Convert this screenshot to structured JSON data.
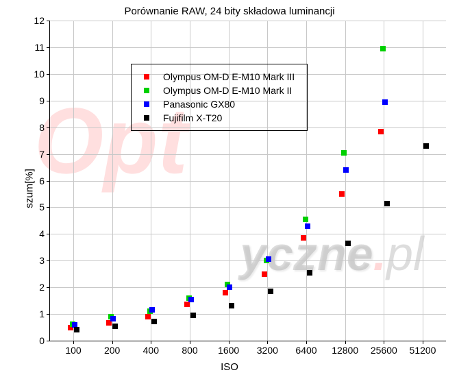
{
  "chart": {
    "type": "scatter",
    "title": "Porównanie RAW, 24 bity składowa luminancji",
    "xlabel": "ISO",
    "ylabel": "szum[%]",
    "background_color": "#ffffff",
    "grid_color": "#c8c8c8",
    "title_fontsize": 15,
    "label_fontsize": 15,
    "tick_fontsize": 14,
    "marker_size": 8,
    "ylim": [
      0,
      12
    ],
    "ytick_step": 1,
    "yticks": [
      0,
      1,
      2,
      3,
      4,
      5,
      6,
      7,
      8,
      9,
      10,
      11,
      12
    ],
    "x_categories": [
      "100",
      "200",
      "400",
      "800",
      "1600",
      "3200",
      "6400",
      "12800",
      "25600",
      "51200"
    ],
    "series": [
      {
        "name": "Olympus OM-D E-M10 Mark III",
        "color": "#ff0000",
        "points": [
          {
            "x": "100",
            "y": 0.5
          },
          {
            "x": "200",
            "y": 0.68
          },
          {
            "x": "400",
            "y": 0.9
          },
          {
            "x": "800",
            "y": 1.35
          },
          {
            "x": "1600",
            "y": 1.8
          },
          {
            "x": "3200",
            "y": 2.5
          },
          {
            "x": "6400",
            "y": 3.85
          },
          {
            "x": "12800",
            "y": 5.5
          },
          {
            "x": "25600",
            "y": 7.85
          }
        ]
      },
      {
        "name": "Olympus OM-D E-M10 Mark II",
        "color": "#00d000",
        "points": [
          {
            "x": "100",
            "y": 0.62
          },
          {
            "x": "200",
            "y": 0.9
          },
          {
            "x": "400",
            "y": 1.1
          },
          {
            "x": "800",
            "y": 1.6
          },
          {
            "x": "1600",
            "y": 2.1
          },
          {
            "x": "3200",
            "y": 3.0
          },
          {
            "x": "6400",
            "y": 4.55
          },
          {
            "x": "12800",
            "y": 7.05
          },
          {
            "x": "25600",
            "y": 10.95
          }
        ]
      },
      {
        "name": "Panasonic GX80",
        "color": "#0000ff",
        "points": [
          {
            "x": "100",
            "y": 0.58
          },
          {
            "x": "200",
            "y": 0.82
          },
          {
            "x": "400",
            "y": 1.15
          },
          {
            "x": "800",
            "y": 1.55
          },
          {
            "x": "1600",
            "y": 2.0
          },
          {
            "x": "3200",
            "y": 3.05
          },
          {
            "x": "6400",
            "y": 4.3
          },
          {
            "x": "12800",
            "y": 6.4
          },
          {
            "x": "25600",
            "y": 8.95
          }
        ]
      },
      {
        "name": "Fujifilm X-T20",
        "color": "#000000",
        "points": [
          {
            "x": "100",
            "y": 0.4
          },
          {
            "x": "200",
            "y": 0.55
          },
          {
            "x": "400",
            "y": 0.72
          },
          {
            "x": "800",
            "y": 0.95
          },
          {
            "x": "1600",
            "y": 1.3
          },
          {
            "x": "3200",
            "y": 1.85
          },
          {
            "x": "6400",
            "y": 2.55
          },
          {
            "x": "12800",
            "y": 3.65
          },
          {
            "x": "25600",
            "y": 5.15
          },
          {
            "x": "51200",
            "y": 7.3
          }
        ]
      }
    ],
    "watermark": {
      "text_main": "Opt",
      "text_sub": "yczne",
      "text_dot": ".",
      "text_tld": "pl",
      "main_color": "rgba(255,40,40,0.15)",
      "sub_color": "rgba(120,120,120,0.25)"
    }
  }
}
